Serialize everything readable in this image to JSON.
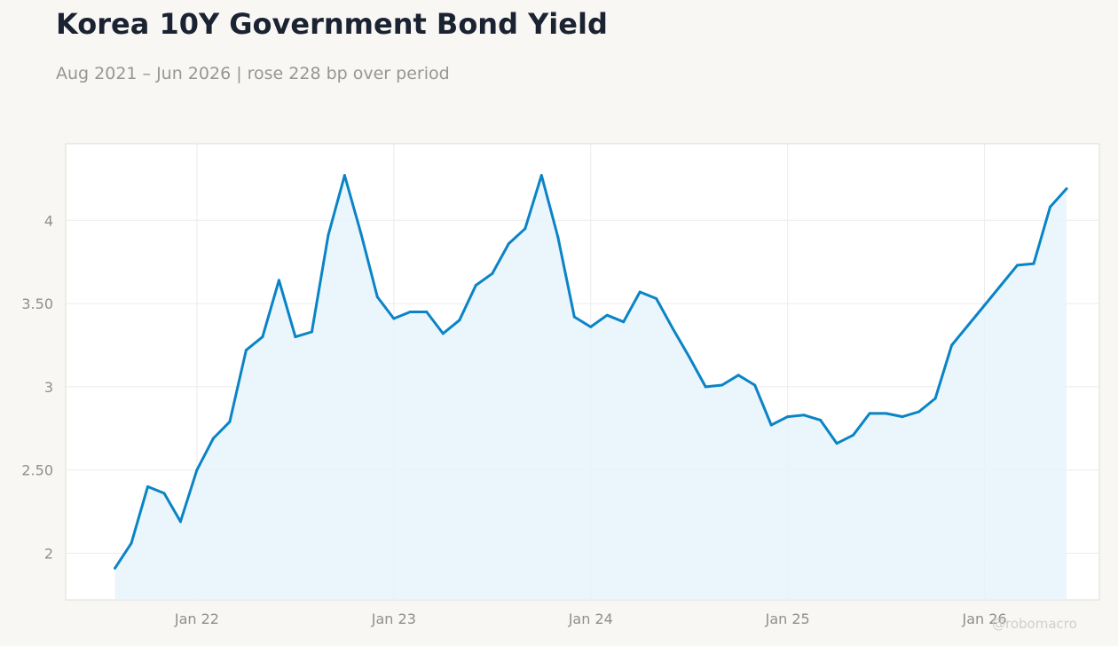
{
  "title": "Korea 10Y Government Bond Yield",
  "subtitle": "Aug 2021 – Jun 2026 | rose 228 bp over period",
  "watermark": "@robomacro",
  "colors": {
    "line": "#0a84c6",
    "fill": "#e8f3fb",
    "grid": "#ececec",
    "axis_text": "#8f8f8f",
    "plot_bg": "#ffffff",
    "page_bg": "#f8f7f4"
  },
  "chart_data": {
    "type": "area",
    "title": "Korea 10Y Government Bond Yield",
    "xlabel": "",
    "ylabel": "",
    "x": [
      "2021-08",
      "2021-09",
      "2021-10",
      "2021-11",
      "2021-12",
      "2022-01",
      "2022-02",
      "2022-03",
      "2022-04",
      "2022-05",
      "2022-06",
      "2022-07",
      "2022-08",
      "2022-09",
      "2022-10",
      "2022-11",
      "2022-12",
      "2023-01",
      "2023-02",
      "2023-03",
      "2023-04",
      "2023-05",
      "2023-06",
      "2023-07",
      "2023-08",
      "2023-09",
      "2023-10",
      "2023-11",
      "2023-12",
      "2024-01",
      "2024-02",
      "2024-03",
      "2024-04",
      "2024-05",
      "2024-06",
      "2024-07",
      "2024-08",
      "2024-09",
      "2024-10",
      "2024-11",
      "2024-12",
      "2025-01",
      "2025-02",
      "2025-03",
      "2025-04",
      "2025-05",
      "2025-06",
      "2025-07",
      "2025-08",
      "2025-09",
      "2025-10",
      "2025-11",
      "2025-12",
      "2026-01",
      "2026-02",
      "2026-03",
      "2026-04",
      "2026-05",
      "2026-06"
    ],
    "series": [
      {
        "name": "",
        "values": [
          1.91,
          2.06,
          2.4,
          2.36,
          2.19,
          2.5,
          2.69,
          2.79,
          3.22,
          3.3,
          3.64,
          3.3,
          3.33,
          3.91,
          4.27,
          3.92,
          3.54,
          3.41,
          3.45,
          3.45,
          3.32,
          3.4,
          3.61,
          3.68,
          3.86,
          3.95,
          4.27,
          3.9,
          3.42,
          3.36,
          3.43,
          3.39,
          3.57,
          3.53,
          3.35,
          3.18,
          3.0,
          3.01,
          3.07,
          3.01,
          2.77,
          2.82,
          2.83,
          2.8,
          2.66,
          2.71,
          2.84,
          2.84,
          2.82,
          2.85,
          2.93,
          3.25,
          3.37,
          3.49,
          3.61,
          3.73,
          3.74,
          4.08,
          4.19
        ]
      }
    ],
    "xticks": [
      {
        "date": "2022-01",
        "label": "Jan 22"
      },
      {
        "date": "2023-01",
        "label": "Jan 23"
      },
      {
        "date": "2024-01",
        "label": "Jan 24"
      },
      {
        "date": "2025-01",
        "label": "Jan 25"
      },
      {
        "date": "2026-01",
        "label": "Jan 26"
      }
    ],
    "yticks": [
      {
        "value": 2,
        "label": "2"
      },
      {
        "value": 2.5,
        "label": "2.50"
      },
      {
        "value": 3,
        "label": "3"
      },
      {
        "value": 3.5,
        "label": "3.50"
      },
      {
        "value": 4,
        "label": "4"
      }
    ],
    "xlim": [
      "2021-05",
      "2026-08"
    ],
    "ylim": [
      1.72,
      4.46
    ],
    "grid": true,
    "legend": false
  }
}
